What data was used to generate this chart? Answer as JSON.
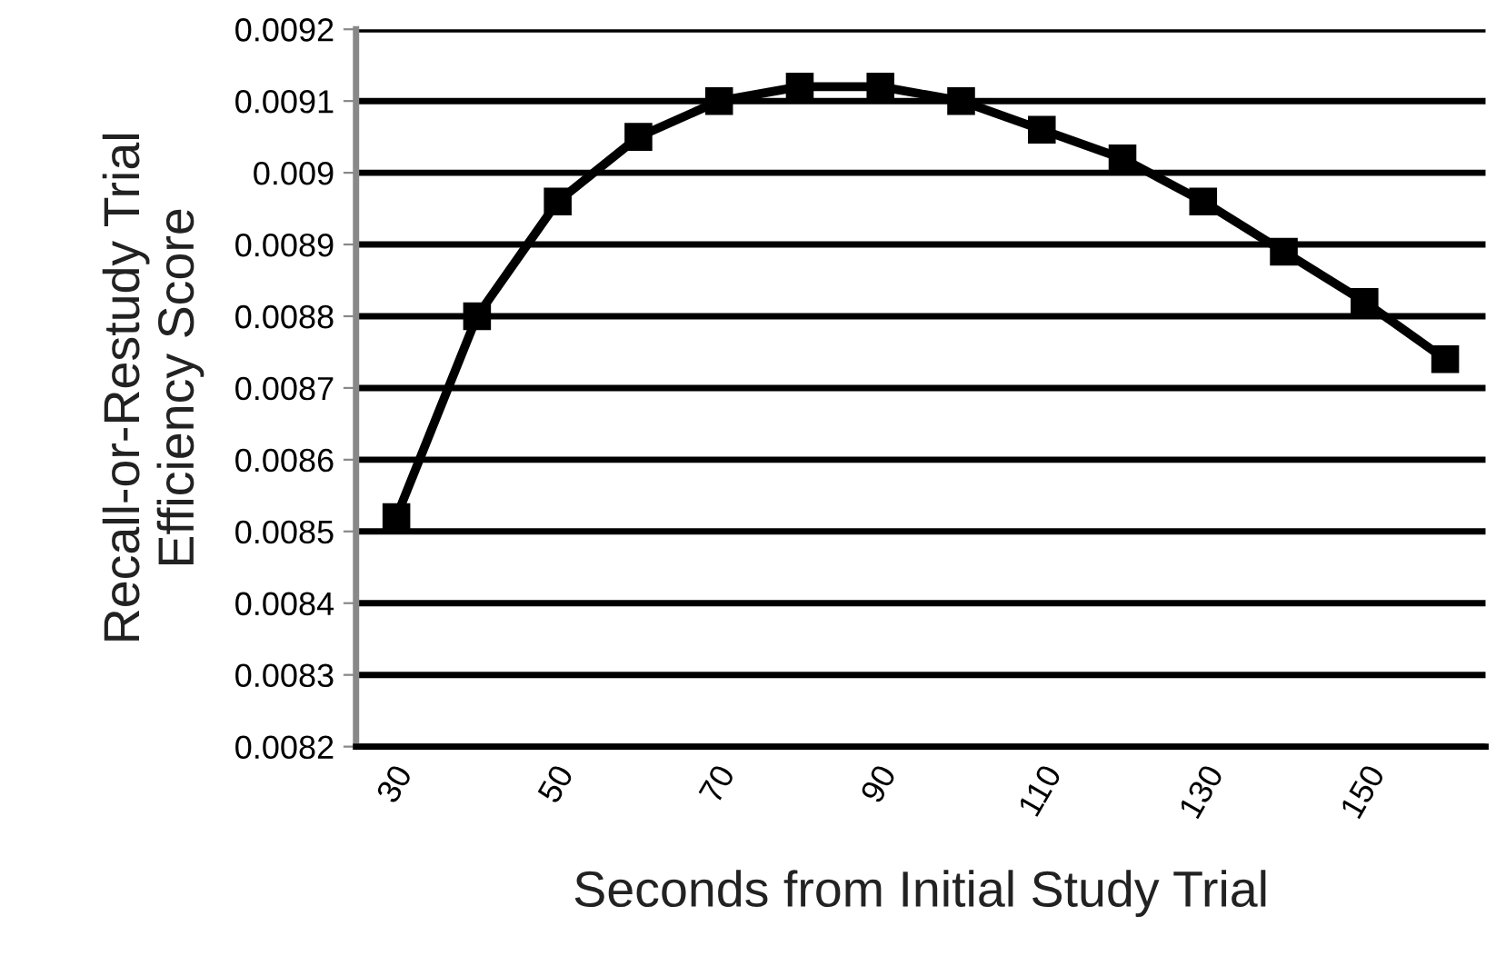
{
  "chart_data": {
    "type": "line",
    "xlabel": "Seconds from Initial Study Trial",
    "ylabel": "Recall-or-Restudy Trial\nEfficiency Score",
    "x": [
      30,
      40,
      50,
      60,
      70,
      80,
      90,
      100,
      110,
      120,
      130,
      140,
      150,
      160
    ],
    "series": [
      {
        "color": "#000000",
        "values": [
          0.00852,
          0.0088,
          0.00896,
          0.00905,
          0.0091,
          0.00912,
          0.00912,
          0.0091,
          0.00906,
          0.00902,
          0.00896,
          0.00889,
          0.00882,
          0.00874
        ]
      }
    ],
    "xlim": [
      25,
      165
    ],
    "xticks": [
      30,
      50,
      70,
      90,
      110,
      130,
      150
    ],
    "ylim": [
      0.0082,
      0.0092
    ],
    "yticks": [
      0.0082,
      0.0083,
      0.0084,
      0.0085,
      0.0086,
      0.0087,
      0.0088,
      0.0089,
      0.009,
      0.0091,
      0.0092
    ],
    "grid": "y",
    "marker": "square",
    "line_style": "solid",
    "legend": false
  }
}
